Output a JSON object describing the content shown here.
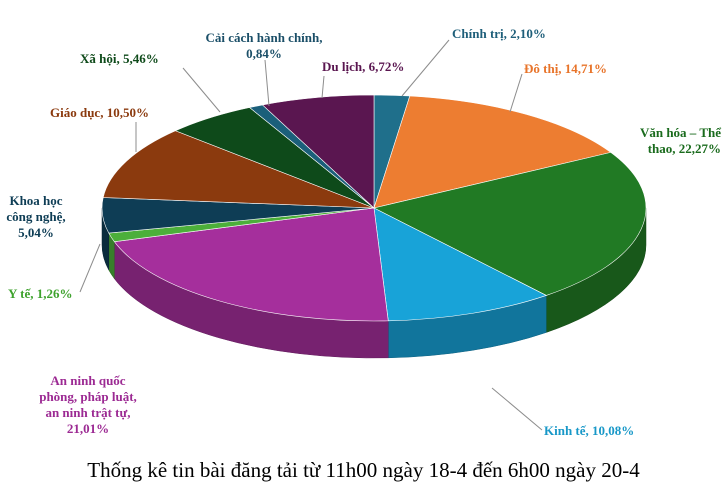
{
  "chart_data": {
    "type": "pie",
    "title": "Thống kê tin bài đăng tải từ 11h00 ngày 18-4 đến 6h00 ngày 20-4",
    "slices": [
      {
        "name": "Chính trị",
        "value": 2.1,
        "label": "Chính trị, 2,10%",
        "color": "#1f6f8b",
        "text_color": "#1f5f7a"
      },
      {
        "name": "Đô thị",
        "value": 14.71,
        "label": "Đô thị, 14,71%",
        "color": "#ed7d31",
        "text_color": "#e8742a"
      },
      {
        "name": "Văn hóa – Thể thao",
        "value": 22.27,
        "label": "Văn hóa – Thể thao, 22,27%",
        "color": "#217a24",
        "text_color": "#1a6b1d"
      },
      {
        "name": "Kinh tế",
        "value": 10.08,
        "label": "Kinh tế, 10,08%",
        "color": "#18a3d8",
        "text_color": "#1898c8"
      },
      {
        "name": "An ninh quốc phòng, pháp luật, an ninh trật tự",
        "value": 21.01,
        "label": "An ninh quốc phòng, pháp luật, an ninh trật tự, 21,01%",
        "color": "#a52f9c",
        "text_color": "#9c2a93"
      },
      {
        "name": "Y tế",
        "value": 1.26,
        "label": "Y tế, 1,26%",
        "color": "#4caf3a",
        "text_color": "#3ea22d"
      },
      {
        "name": "Khoa học công nghệ",
        "value": 5.04,
        "label": "Khoa học công nghệ, 5,04%",
        "color": "#0e3d55",
        "text_color": "#0e3d55"
      },
      {
        "name": "Giáo dục",
        "value": 10.5,
        "label": "Giáo dục, 10,50%",
        "color": "#8b3a0e",
        "text_color": "#8b3a0e"
      },
      {
        "name": "Xã hội",
        "value": 5.46,
        "label": "Xã hội, 5,46%",
        "color": "#0e4a1a",
        "text_color": "#0e4a1a"
      },
      {
        "name": "Cải cách hành chính",
        "value": 0.84,
        "label": "Cải cách hành chính, 0,84%",
        "color": "#1b5f7a",
        "text_color": "#1b4f68"
      },
      {
        "name": "Du lịch",
        "value": 6.72,
        "label": "Du lịch, 6,72%",
        "color": "#5a1650",
        "text_color": "#5a1650"
      }
    ],
    "legend": "none"
  }
}
